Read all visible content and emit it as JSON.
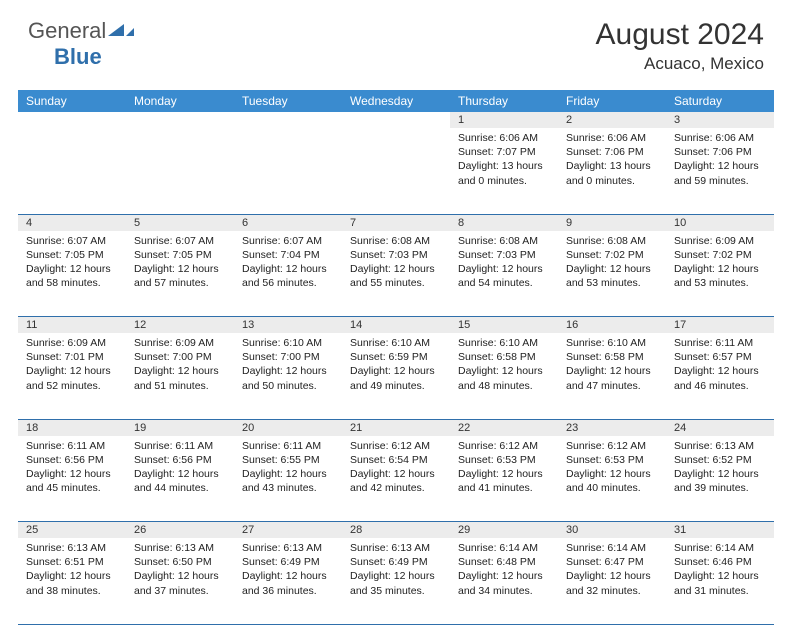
{
  "brand": {
    "general": "General",
    "blue": "Blue"
  },
  "title": "August 2024",
  "location": "Acuaco, Mexico",
  "colors": {
    "header_bg": "#3a8bcf",
    "border": "#2f6fab",
    "daynum_bg": "#ececec",
    "text": "#222222",
    "page_bg": "#ffffff"
  },
  "weekdays": [
    "Sunday",
    "Monday",
    "Tuesday",
    "Wednesday",
    "Thursday",
    "Friday",
    "Saturday"
  ],
  "weeks": [
    [
      null,
      null,
      null,
      null,
      {
        "d": "1",
        "sr": "Sunrise: 6:06 AM",
        "ss": "Sunset: 7:07 PM",
        "dl1": "Daylight: 13 hours",
        "dl2": "and 0 minutes."
      },
      {
        "d": "2",
        "sr": "Sunrise: 6:06 AM",
        "ss": "Sunset: 7:06 PM",
        "dl1": "Daylight: 13 hours",
        "dl2": "and 0 minutes."
      },
      {
        "d": "3",
        "sr": "Sunrise: 6:06 AM",
        "ss": "Sunset: 7:06 PM",
        "dl1": "Daylight: 12 hours",
        "dl2": "and 59 minutes."
      }
    ],
    [
      {
        "d": "4",
        "sr": "Sunrise: 6:07 AM",
        "ss": "Sunset: 7:05 PM",
        "dl1": "Daylight: 12 hours",
        "dl2": "and 58 minutes."
      },
      {
        "d": "5",
        "sr": "Sunrise: 6:07 AM",
        "ss": "Sunset: 7:05 PM",
        "dl1": "Daylight: 12 hours",
        "dl2": "and 57 minutes."
      },
      {
        "d": "6",
        "sr": "Sunrise: 6:07 AM",
        "ss": "Sunset: 7:04 PM",
        "dl1": "Daylight: 12 hours",
        "dl2": "and 56 minutes."
      },
      {
        "d": "7",
        "sr": "Sunrise: 6:08 AM",
        "ss": "Sunset: 7:03 PM",
        "dl1": "Daylight: 12 hours",
        "dl2": "and 55 minutes."
      },
      {
        "d": "8",
        "sr": "Sunrise: 6:08 AM",
        "ss": "Sunset: 7:03 PM",
        "dl1": "Daylight: 12 hours",
        "dl2": "and 54 minutes."
      },
      {
        "d": "9",
        "sr": "Sunrise: 6:08 AM",
        "ss": "Sunset: 7:02 PM",
        "dl1": "Daylight: 12 hours",
        "dl2": "and 53 minutes."
      },
      {
        "d": "10",
        "sr": "Sunrise: 6:09 AM",
        "ss": "Sunset: 7:02 PM",
        "dl1": "Daylight: 12 hours",
        "dl2": "and 53 minutes."
      }
    ],
    [
      {
        "d": "11",
        "sr": "Sunrise: 6:09 AM",
        "ss": "Sunset: 7:01 PM",
        "dl1": "Daylight: 12 hours",
        "dl2": "and 52 minutes."
      },
      {
        "d": "12",
        "sr": "Sunrise: 6:09 AM",
        "ss": "Sunset: 7:00 PM",
        "dl1": "Daylight: 12 hours",
        "dl2": "and 51 minutes."
      },
      {
        "d": "13",
        "sr": "Sunrise: 6:10 AM",
        "ss": "Sunset: 7:00 PM",
        "dl1": "Daylight: 12 hours",
        "dl2": "and 50 minutes."
      },
      {
        "d": "14",
        "sr": "Sunrise: 6:10 AM",
        "ss": "Sunset: 6:59 PM",
        "dl1": "Daylight: 12 hours",
        "dl2": "and 49 minutes."
      },
      {
        "d": "15",
        "sr": "Sunrise: 6:10 AM",
        "ss": "Sunset: 6:58 PM",
        "dl1": "Daylight: 12 hours",
        "dl2": "and 48 minutes."
      },
      {
        "d": "16",
        "sr": "Sunrise: 6:10 AM",
        "ss": "Sunset: 6:58 PM",
        "dl1": "Daylight: 12 hours",
        "dl2": "and 47 minutes."
      },
      {
        "d": "17",
        "sr": "Sunrise: 6:11 AM",
        "ss": "Sunset: 6:57 PM",
        "dl1": "Daylight: 12 hours",
        "dl2": "and 46 minutes."
      }
    ],
    [
      {
        "d": "18",
        "sr": "Sunrise: 6:11 AM",
        "ss": "Sunset: 6:56 PM",
        "dl1": "Daylight: 12 hours",
        "dl2": "and 45 minutes."
      },
      {
        "d": "19",
        "sr": "Sunrise: 6:11 AM",
        "ss": "Sunset: 6:56 PM",
        "dl1": "Daylight: 12 hours",
        "dl2": "and 44 minutes."
      },
      {
        "d": "20",
        "sr": "Sunrise: 6:11 AM",
        "ss": "Sunset: 6:55 PM",
        "dl1": "Daylight: 12 hours",
        "dl2": "and 43 minutes."
      },
      {
        "d": "21",
        "sr": "Sunrise: 6:12 AM",
        "ss": "Sunset: 6:54 PM",
        "dl1": "Daylight: 12 hours",
        "dl2": "and 42 minutes."
      },
      {
        "d": "22",
        "sr": "Sunrise: 6:12 AM",
        "ss": "Sunset: 6:53 PM",
        "dl1": "Daylight: 12 hours",
        "dl2": "and 41 minutes."
      },
      {
        "d": "23",
        "sr": "Sunrise: 6:12 AM",
        "ss": "Sunset: 6:53 PM",
        "dl1": "Daylight: 12 hours",
        "dl2": "and 40 minutes."
      },
      {
        "d": "24",
        "sr": "Sunrise: 6:13 AM",
        "ss": "Sunset: 6:52 PM",
        "dl1": "Daylight: 12 hours",
        "dl2": "and 39 minutes."
      }
    ],
    [
      {
        "d": "25",
        "sr": "Sunrise: 6:13 AM",
        "ss": "Sunset: 6:51 PM",
        "dl1": "Daylight: 12 hours",
        "dl2": "and 38 minutes."
      },
      {
        "d": "26",
        "sr": "Sunrise: 6:13 AM",
        "ss": "Sunset: 6:50 PM",
        "dl1": "Daylight: 12 hours",
        "dl2": "and 37 minutes."
      },
      {
        "d": "27",
        "sr": "Sunrise: 6:13 AM",
        "ss": "Sunset: 6:49 PM",
        "dl1": "Daylight: 12 hours",
        "dl2": "and 36 minutes."
      },
      {
        "d": "28",
        "sr": "Sunrise: 6:13 AM",
        "ss": "Sunset: 6:49 PM",
        "dl1": "Daylight: 12 hours",
        "dl2": "and 35 minutes."
      },
      {
        "d": "29",
        "sr": "Sunrise: 6:14 AM",
        "ss": "Sunset: 6:48 PM",
        "dl1": "Daylight: 12 hours",
        "dl2": "and 34 minutes."
      },
      {
        "d": "30",
        "sr": "Sunrise: 6:14 AM",
        "ss": "Sunset: 6:47 PM",
        "dl1": "Daylight: 12 hours",
        "dl2": "and 32 minutes."
      },
      {
        "d": "31",
        "sr": "Sunrise: 6:14 AM",
        "ss": "Sunset: 6:46 PM",
        "dl1": "Daylight: 12 hours",
        "dl2": "and 31 minutes."
      }
    ]
  ]
}
